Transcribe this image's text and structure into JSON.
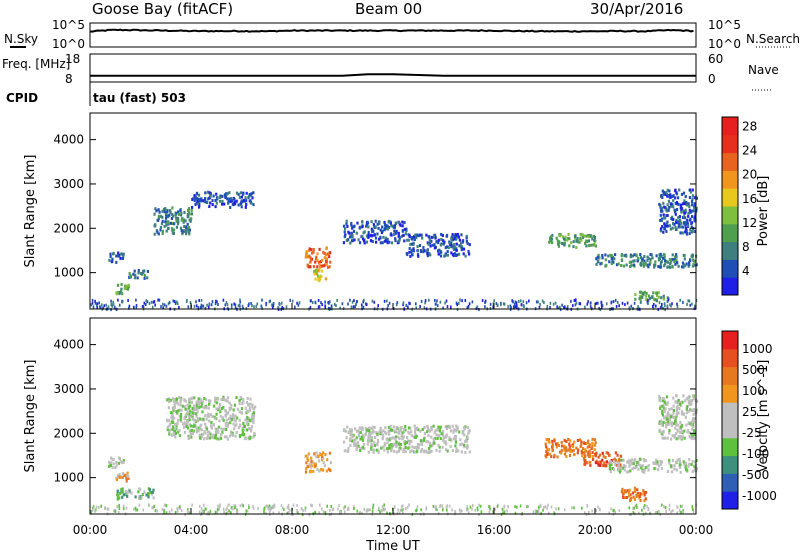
{
  "header": {
    "station": "Goose Bay (fitACF)",
    "beam": "Beam 00",
    "date": "30/Apr/2016"
  },
  "colors": {
    "power_scale": [
      "#1f1fe6",
      "#1f4fb4",
      "#3f7f7f",
      "#4f9f4f",
      "#7fbf3f",
      "#e6c81f",
      "#f0961f",
      "#e6641f",
      "#e62f1f",
      "#e61f1f"
    ],
    "velocity_scale": [
      "#1f1fe6",
      "#2f5fb4",
      "#3f8f7f",
      "#5fbf3f",
      "#bfbfbf",
      "#bfbfbf",
      "#f0961f",
      "#e6781f",
      "#e64f1f",
      "#e61f1f"
    ]
  },
  "chart_data": [
    {
      "type": "line",
      "name": "nsky-nsearch-panel",
      "left_label": "N.Sky",
      "right_label": "N.Search",
      "left_ticks": [
        "10^5",
        "10^0"
      ],
      "right_ticks": [
        "10^5",
        "10^0"
      ],
      "series": [
        {
          "name": "N.Sky",
          "x": [
            0,
            1,
            2,
            3,
            4,
            5,
            6,
            7,
            8,
            9,
            10,
            11,
            12,
            13,
            14,
            15,
            16,
            17,
            18,
            19,
            20,
            21,
            22,
            23,
            24
          ],
          "y": [
            1500,
            3500,
            3000,
            2500,
            2000,
            2000,
            2000,
            1800,
            2500,
            2500,
            2500,
            2500,
            2500,
            2500,
            2500,
            2500,
            2500,
            2000,
            1800,
            1800,
            1800,
            2000,
            1800,
            3000,
            2000
          ]
        }
      ]
    },
    {
      "type": "line",
      "name": "freq-nave-panel",
      "left_label": "Freq. [MHz]",
      "right_label": "Nave",
      "left_ticks": [
        "18",
        "8"
      ],
      "right_ticks": [
        "60",
        "0"
      ],
      "cpid_label": "CPID",
      "mode_label": "tau (fast) 503",
      "series": [
        {
          "name": "Freq.",
          "x": [
            0,
            2,
            4,
            6,
            8,
            10,
            11,
            12,
            14,
            16,
            18,
            20,
            22,
            24
          ],
          "y": [
            10.2,
            10.2,
            10.2,
            10.2,
            10.2,
            10.2,
            10.8,
            10.8,
            10.2,
            10.2,
            10.2,
            10.2,
            10.2,
            10.2
          ]
        }
      ]
    },
    {
      "type": "heatmap",
      "name": "power-panel",
      "ylabel": "Slant Range [km]",
      "yticks": [
        1000,
        2000,
        3000,
        4000
      ],
      "ylim": [
        180,
        4600
      ],
      "xlim": [
        0,
        24
      ],
      "colorbar_label": "Power [dB]",
      "colorbar_ticks": [
        4,
        8,
        12,
        16,
        20,
        24,
        28
      ],
      "blobs": [
        {
          "t0": 0.7,
          "t1": 1.3,
          "r0": 1250,
          "r1": 1500,
          "level": 1
        },
        {
          "t0": 1.0,
          "t1": 1.5,
          "r0": 550,
          "r1": 800,
          "level": 3
        },
        {
          "t0": 1.5,
          "t1": 2.3,
          "r0": 900,
          "r1": 1100,
          "level": 2
        },
        {
          "t0": 2.5,
          "t1": 4.0,
          "r0": 1900,
          "r1": 2500,
          "level": 2
        },
        {
          "t0": 4.0,
          "t1": 6.5,
          "r0": 2500,
          "r1": 2850,
          "level": 1
        },
        {
          "t0": 8.5,
          "t1": 9.5,
          "r0": 1150,
          "r1": 1600,
          "level": 7
        },
        {
          "t0": 8.8,
          "t1": 9.3,
          "r0": 850,
          "r1": 1100,
          "level": 5
        },
        {
          "t0": 10.0,
          "t1": 12.5,
          "r0": 1700,
          "r1": 2200,
          "level": 1
        },
        {
          "t0": 12.5,
          "t1": 15.0,
          "r0": 1400,
          "r1": 1900,
          "level": 1
        },
        {
          "t0": 18.0,
          "t1": 20.0,
          "r0": 1600,
          "r1": 1900,
          "level": 3
        },
        {
          "t0": 20.0,
          "t1": 24.0,
          "r0": 1150,
          "r1": 1450,
          "level": 2
        },
        {
          "t0": 21.5,
          "t1": 23.0,
          "r0": 400,
          "r1": 600,
          "level": 3
        },
        {
          "t0": 22.5,
          "t1": 24.0,
          "r0": 1900,
          "r1": 2900,
          "level": 1
        }
      ],
      "ground_band": {
        "r0": 200,
        "r1": 420,
        "level": 1
      }
    },
    {
      "type": "heatmap",
      "name": "velocity-panel",
      "ylabel": "Slant Range [km]",
      "xlabel": "Time UT",
      "yticks": [
        1000,
        2000,
        3000,
        4000
      ],
      "ylim": [
        180,
        4600
      ],
      "xlim": [
        0,
        24
      ],
      "xticks": [
        "00:00",
        "04:00",
        "08:00",
        "12:00",
        "16:00",
        "20:00",
        "00:00"
      ],
      "colorbar_label": "Velocity [m s^-1]",
      "colorbar_ticks": [
        "1000",
        "500",
        "100",
        "25",
        "-25",
        "-100",
        "-500",
        "-1000"
      ],
      "blobs": [
        {
          "t0": 0.7,
          "t1": 1.3,
          "r0": 1250,
          "r1": 1500,
          "level": 4
        },
        {
          "t0": 1.0,
          "t1": 1.5,
          "r0": 950,
          "r1": 1150,
          "level": 6
        },
        {
          "t0": 1.0,
          "t1": 2.5,
          "r0": 550,
          "r1": 800,
          "level": 3
        },
        {
          "t0": 3.0,
          "t1": 6.5,
          "r0": 1900,
          "r1": 2850,
          "level": 4
        },
        {
          "t0": 8.5,
          "t1": 9.5,
          "r0": 1150,
          "r1": 1600,
          "level": 6
        },
        {
          "t0": 10.0,
          "t1": 15.0,
          "r0": 1600,
          "r1": 2200,
          "level": 4
        },
        {
          "t0": 18.0,
          "t1": 20.0,
          "r0": 1500,
          "r1": 1900,
          "level": 7
        },
        {
          "t0": 19.5,
          "t1": 21.0,
          "r0": 1300,
          "r1": 1600,
          "level": 8
        },
        {
          "t0": 20.5,
          "t1": 24.0,
          "r0": 1150,
          "r1": 1450,
          "level": 4
        },
        {
          "t0": 21.0,
          "t1": 22.0,
          "r0": 500,
          "r1": 800,
          "level": 7
        },
        {
          "t0": 22.5,
          "t1": 24.0,
          "r0": 1900,
          "r1": 2900,
          "level": 4
        }
      ],
      "ground_band": {
        "r0": 200,
        "r1": 420,
        "level": 4
      }
    }
  ]
}
